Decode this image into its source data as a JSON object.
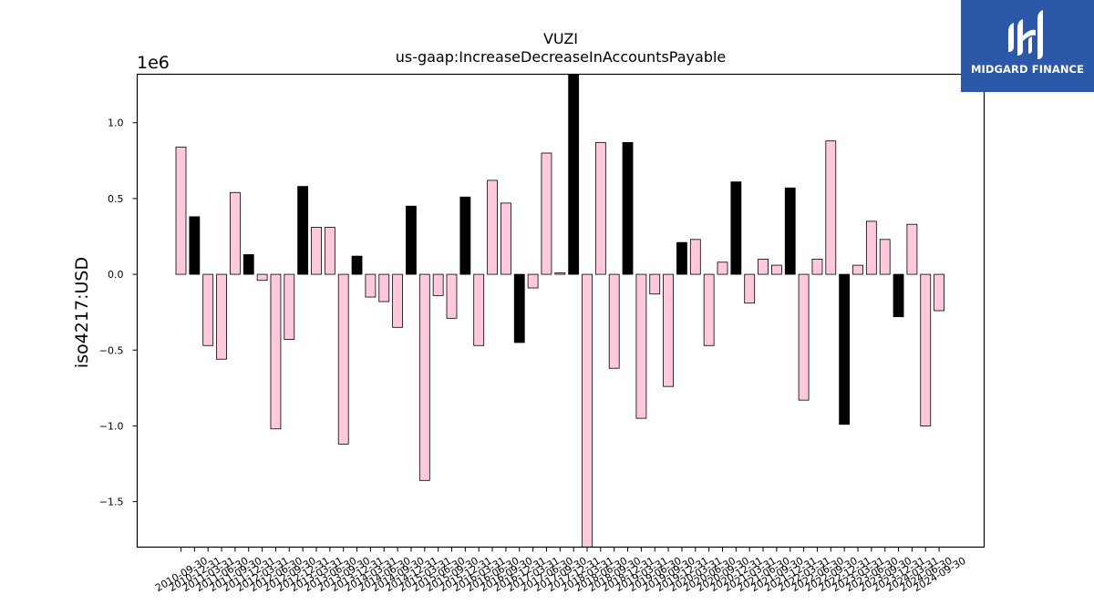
{
  "logo": {
    "text": "MIDGARD FINANCE",
    "color": "#2b58a8"
  },
  "chart_data": {
    "type": "bar",
    "title": "VUZI",
    "subtitle": "us-gaap:IncreaseDecreaseInAccountsPayable",
    "ylabel": "iso4217:USD",
    "xlabel": "",
    "offset_label": "1e6",
    "ylim": [
      -1800000,
      1320000
    ],
    "yticks": [
      -1.5,
      -1.0,
      -0.5,
      0.0,
      0.5,
      1.0
    ],
    "ytick_labels": [
      "−1.5",
      "−1.0",
      "−0.5",
      "0.0",
      "0.5",
      "1.0"
    ],
    "grid": false,
    "colors": {
      "quarterly": "#ffc8dd",
      "annual": "#000000"
    },
    "categories": [
      "2010-09-30",
      "2010-12-31",
      "2011-03-31",
      "2011-06-30",
      "2011-09-30",
      "2011-12-31",
      "2012-03-31",
      "2012-06-30",
      "2012-09-30",
      "2012-12-31",
      "2013-03-31",
      "2013-06-30",
      "2013-09-30",
      "2013-12-31",
      "2014-03-31",
      "2014-06-30",
      "2014-09-30",
      "2014-12-31",
      "2015-03-31",
      "2015-06-30",
      "2015-09-30",
      "2015-12-31",
      "2016-03-31",
      "2016-06-30",
      "2016-09-30",
      "2016-12-31",
      "2017-03-31",
      "2017-06-30",
      "2017-09-30",
      "2017-12-31",
      "2018-03-31",
      "2018-06-30",
      "2018-09-30",
      "2018-12-31",
      "2019-03-31",
      "2019-06-30",
      "2019-09-30",
      "2019-12-31",
      "2020-03-31",
      "2020-06-30",
      "2020-09-30",
      "2020-12-31",
      "2021-03-31",
      "2021-06-30",
      "2021-09-30",
      "2021-12-31",
      "2022-03-31",
      "2022-06-30",
      "2022-09-30",
      "2022-12-31",
      "2023-03-31",
      "2023-06-30",
      "2023-09-30",
      "2023-12-31",
      "2024-03-31",
      "2024-06-30",
      "2024-09-30"
    ],
    "values": [
      840000,
      380000,
      -470000,
      -560000,
      540000,
      130000,
      -40000,
      -1020000,
      -430000,
      580000,
      310000,
      310000,
      -1120000,
      120000,
      -150000,
      -180000,
      -350000,
      450000,
      -1360000,
      -140000,
      -290000,
      510000,
      -470000,
      620000,
      470000,
      -450000,
      -90000,
      800000,
      10000,
      1330000,
      -1800000,
      870000,
      -620000,
      870000,
      -950000,
      -130000,
      -740000,
      210000,
      230000,
      -470000,
      80000,
      610000,
      -190000,
      100000,
      60000,
      570000,
      -830000,
      100000,
      880000,
      -990000,
      60000,
      350000,
      230000,
      -280000,
      330000,
      -1000000,
      -240000
    ],
    "annual_flags": [
      false,
      true,
      false,
      false,
      false,
      true,
      false,
      false,
      false,
      true,
      false,
      false,
      false,
      true,
      false,
      false,
      false,
      true,
      false,
      false,
      false,
      true,
      false,
      false,
      false,
      true,
      false,
      false,
      false,
      true,
      false,
      false,
      false,
      true,
      false,
      false,
      false,
      true,
      false,
      false,
      false,
      true,
      false,
      false,
      false,
      true,
      false,
      false,
      false,
      true,
      false,
      false,
      false,
      true,
      false,
      false,
      false
    ]
  }
}
